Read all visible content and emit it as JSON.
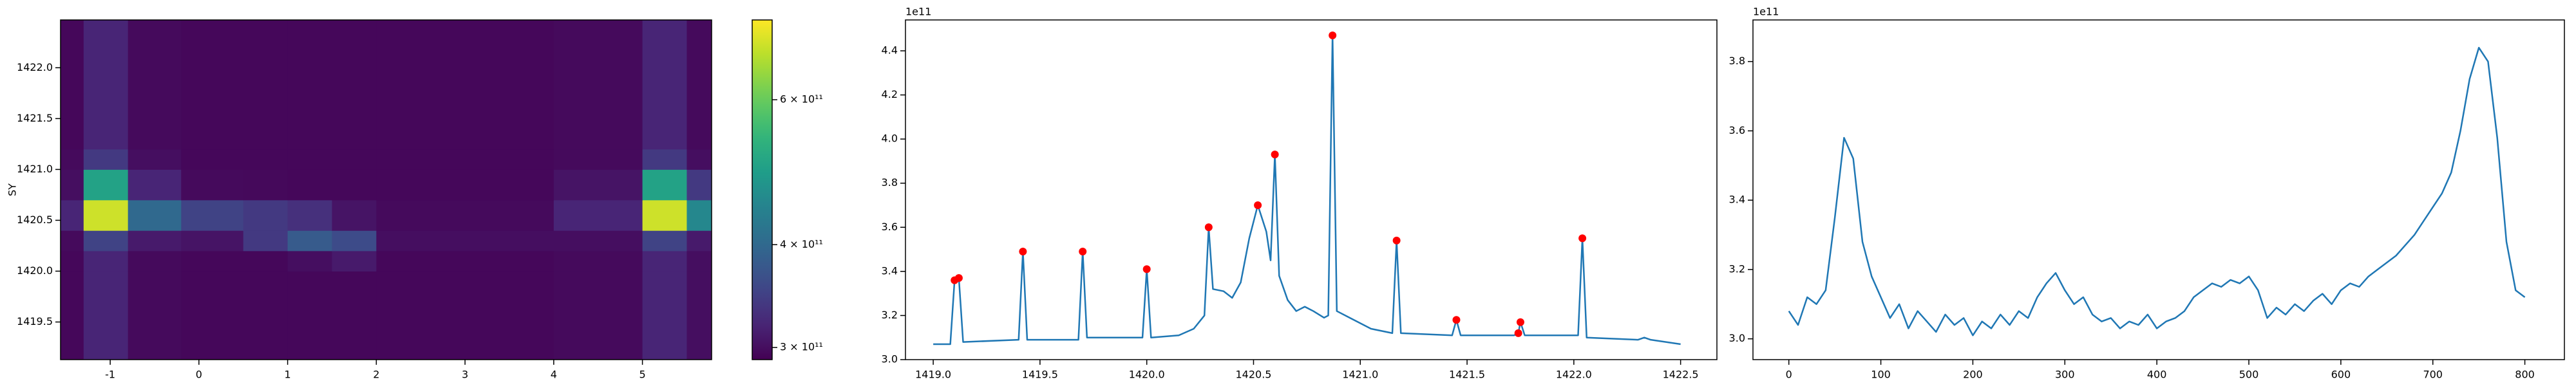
{
  "chart_data": [
    {
      "type": "heatmap",
      "y_label": "SY",
      "cmap": "viridis",
      "xlim": [
        -1.56,
        5.78
      ],
      "ylim": [
        1419.13,
        1422.47
      ],
      "xticks": [
        -1,
        0,
        1,
        2,
        3,
        4,
        5
      ],
      "yticks": [
        1419.5,
        {
          "value": 1420,
          "label": "1420.0"
        },
        1420.5,
        {
          "value": 1421,
          "label": "1421.0"
        },
        1421.5,
        {
          "value": 1422,
          "label": "1422.0"
        }
      ],
      "x_edges": [
        -1.56,
        -1.3,
        -0.8,
        -0.2,
        0.5,
        1.0,
        1.5,
        2.0,
        4.0,
        5.0,
        5.5,
        5.78
      ],
      "y_edges": [
        1419.13,
        1420.0,
        1420.2,
        1420.4,
        1420.7,
        1421.0,
        1421.2,
        1422.47
      ],
      "z": [
        [
          295000000000.0,
          320000000000.0,
          297000000000.0,
          295000000000.0,
          295000000000.0,
          295000000000.0,
          295000000000.0,
          295000000000.0,
          297000000000.0,
          320000000000.0,
          300000000000.0
        ],
        [
          295000000000.0,
          320000000000.0,
          297000000000.0,
          295000000000.0,
          295000000000.0,
          300000000000.0,
          310000000000.0,
          295000000000.0,
          297000000000.0,
          320000000000.0,
          300000000000.0
        ],
        [
          297000000000.0,
          350000000000.0,
          310000000000.0,
          305000000000.0,
          340000000000.0,
          380000000000.0,
          360000000000.0,
          300000000000.0,
          300000000000.0,
          350000000000.0,
          310000000000.0
        ],
        [
          320000000000.0,
          700000000000.0,
          400000000000.0,
          350000000000.0,
          340000000000.0,
          330000000000.0,
          305000000000.0,
          297000000000.0,
          320000000000.0,
          700000000000.0,
          450000000000.0
        ],
        [
          300000000000.0,
          500000000000.0,
          320000000000.0,
          297000000000.0,
          296000000000.0,
          295000000000.0,
          295000000000.0,
          295000000000.0,
          305000000000.0,
          500000000000.0,
          340000000000.0
        ],
        [
          297000000000.0,
          340000000000.0,
          300000000000.0,
          295000000000.0,
          295000000000.0,
          295000000000.0,
          295000000000.0,
          295000000000.0,
          297000000000.0,
          340000000000.0,
          300000000000.0
        ],
        [
          295000000000.0,
          320000000000.0,
          297000000000.0,
          295000000000.0,
          295000000000.0,
          295000000000.0,
          295000000000.0,
          295000000000.0,
          297000000000.0,
          320000000000.0,
          297000000000.0
        ]
      ],
      "colorbar": {
        "log": true,
        "lim": [
          290000000000.0,
          750000000000.0
        ],
        "ticks": [
          {
            "value": 300000000000.0,
            "label": "3 × 10¹¹"
          },
          {
            "value": 400000000000.0,
            "label": "4 × 10¹¹"
          },
          {
            "value": 600000000000.0,
            "label": "6 × 10¹¹"
          }
        ]
      }
    },
    {
      "type": "line",
      "offset_text": "1e11",
      "xlim": [
        1418.87,
        1422.67
      ],
      "ylim": [
        3.0,
        4.54
      ],
      "xticks": [
        {
          "value": 1419,
          "label": "1419.0"
        },
        1419.5,
        {
          "value": 1420,
          "label": "1420.0"
        },
        1420.5,
        {
          "value": 1421,
          "label": "1421.0"
        },
        1421.5,
        {
          "value": 1422,
          "label": "1422.0"
        },
        1422.5
      ],
      "yticks": [
        {
          "value": 3,
          "label": "3.0"
        },
        3.2,
        3.4,
        3.6,
        3.8,
        {
          "value": 4,
          "label": "4.0"
        },
        4.2,
        4.4
      ],
      "series": [
        {
          "color": "#1f77b4",
          "style": "line",
          "x": [
            1419.0,
            1419.08,
            1419.1,
            1419.12,
            1419.14,
            1419.4,
            1419.42,
            1419.44,
            1419.68,
            1419.7,
            1419.72,
            1419.98,
            1420.0,
            1420.02,
            1420.15,
            1420.22,
            1420.27,
            1420.29,
            1420.31,
            1420.36,
            1420.4,
            1420.44,
            1420.48,
            1420.52,
            1420.56,
            1420.58,
            1420.6,
            1420.62,
            1420.66,
            1420.7,
            1420.74,
            1420.78,
            1420.83,
            1420.85,
            1420.87,
            1420.89,
            1420.95,
            1421.05,
            1421.15,
            1421.17,
            1421.19,
            1421.43,
            1421.45,
            1421.47,
            1421.72,
            1421.74,
            1421.75,
            1421.77,
            1422.02,
            1422.04,
            1422.06,
            1422.3,
            1422.33,
            1422.36,
            1422.5
          ],
          "values": [
            3.07,
            3.07,
            3.36,
            3.37,
            3.08,
            3.09,
            3.49,
            3.09,
            3.09,
            3.49,
            3.1,
            3.1,
            3.41,
            3.1,
            3.11,
            3.14,
            3.2,
            3.6,
            3.32,
            3.31,
            3.28,
            3.35,
            3.55,
            3.7,
            3.58,
            3.45,
            3.93,
            3.38,
            3.27,
            3.22,
            3.24,
            3.22,
            3.19,
            3.2,
            4.47,
            3.22,
            3.19,
            3.14,
            3.12,
            3.54,
            3.12,
            3.11,
            3.18,
            3.11,
            3.11,
            3.12,
            3.17,
            3.11,
            3.11,
            3.55,
            3.1,
            3.09,
            3.1,
            3.09,
            3.07
          ]
        },
        {
          "color": "#ff0000",
          "style": "markers",
          "x": [
            1419.1,
            1419.12,
            1419.42,
            1419.7,
            1420.0,
            1420.29,
            1420.52,
            1420.6,
            1420.87,
            1421.17,
            1421.45,
            1421.74,
            1421.75,
            1422.04
          ],
          "values": [
            3.36,
            3.37,
            3.49,
            3.49,
            3.41,
            3.6,
            3.7,
            3.93,
            4.47,
            3.54,
            3.18,
            3.12,
            3.17,
            3.55
          ]
        }
      ]
    },
    {
      "type": "line",
      "offset_text": "1e11",
      "xlim": [
        -39,
        843
      ],
      "ylim": [
        2.94,
        3.92
      ],
      "xticks": [
        0,
        100,
        200,
        300,
        400,
        500,
        600,
        700,
        800
      ],
      "yticks": [
        {
          "value": 3,
          "label": "3.0"
        },
        3.2,
        3.4,
        3.6,
        3.8
      ],
      "series": [
        {
          "color": "#1f77b4",
          "style": "line",
          "x": [
            0,
            10,
            20,
            30,
            40,
            50,
            60,
            70,
            80,
            90,
            100,
            110,
            120,
            130,
            140,
            150,
            160,
            170,
            180,
            190,
            200,
            210,
            220,
            230,
            240,
            250,
            260,
            270,
            280,
            290,
            300,
            310,
            320,
            330,
            340,
            350,
            360,
            370,
            380,
            390,
            400,
            410,
            420,
            430,
            440,
            450,
            460,
            470,
            480,
            490,
            500,
            510,
            520,
            530,
            540,
            550,
            560,
            570,
            580,
            590,
            600,
            610,
            620,
            630,
            640,
            650,
            660,
            670,
            680,
            690,
            700,
            710,
            720,
            730,
            740,
            750,
            760,
            770,
            780,
            790,
            800
          ],
          "values": [
            3.08,
            3.04,
            3.12,
            3.1,
            3.14,
            3.35,
            3.58,
            3.52,
            3.28,
            3.18,
            3.12,
            3.06,
            3.1,
            3.03,
            3.08,
            3.05,
            3.02,
            3.07,
            3.04,
            3.06,
            3.01,
            3.05,
            3.03,
            3.07,
            3.04,
            3.08,
            3.06,
            3.12,
            3.16,
            3.19,
            3.14,
            3.1,
            3.12,
            3.07,
            3.05,
            3.06,
            3.03,
            3.05,
            3.04,
            3.07,
            3.03,
            3.05,
            3.06,
            3.08,
            3.12,
            3.14,
            3.16,
            3.15,
            3.17,
            3.16,
            3.18,
            3.14,
            3.06,
            3.09,
            3.07,
            3.1,
            3.08,
            3.11,
            3.13,
            3.1,
            3.14,
            3.16,
            3.15,
            3.18,
            3.2,
            3.22,
            3.24,
            3.27,
            3.3,
            3.34,
            3.38,
            3.42,
            3.48,
            3.6,
            3.75,
            3.84,
            3.8,
            3.58,
            3.28,
            3.14,
            3.12
          ]
        }
      ]
    }
  ]
}
